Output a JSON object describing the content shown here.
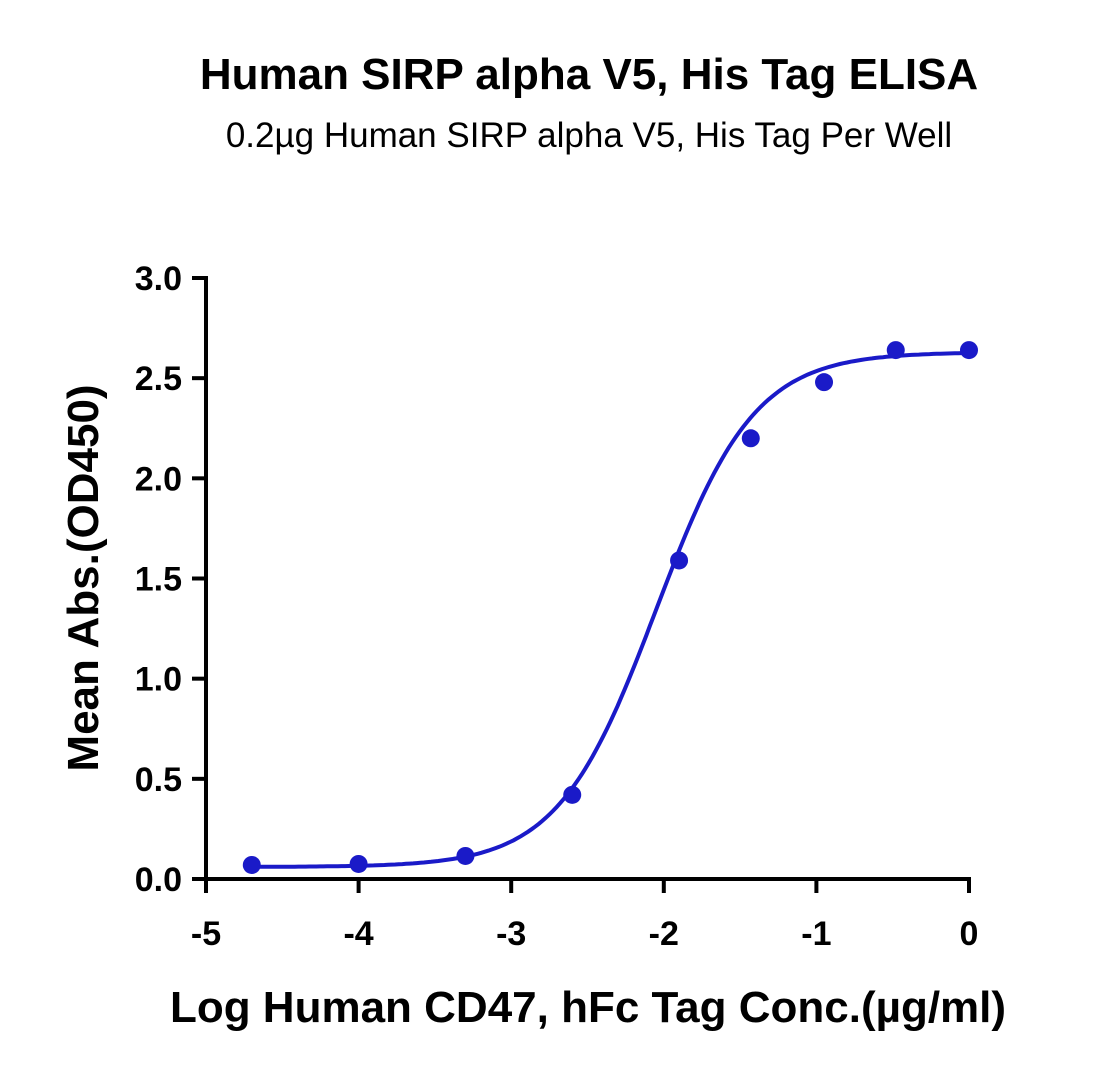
{
  "chart_data": {
    "type": "scatter",
    "title": "Human SIRP alpha V5, His Tag ELISA",
    "subtitle": "0.2µg Human SIRP alpha V5, His Tag Per Well",
    "xlabel": "Log Human CD47, hFc Tag Conc.(µg/ml)",
    "ylabel": "Mean Abs.(OD450)",
    "xlim": [
      -5,
      0
    ],
    "ylim": [
      0,
      3.0
    ],
    "xticks": [
      "-5",
      "-4",
      "-3",
      "-2",
      "-1",
      "0"
    ],
    "yticks": [
      "0.0",
      "0.5",
      "1.0",
      "1.5",
      "2.0",
      "2.5",
      "3.0"
    ],
    "grid": false,
    "series": [
      {
        "color": "#1a1ac8",
        "points": [
          {
            "x": -4.7,
            "y": 0.07
          },
          {
            "x": -4.0,
            "y": 0.075
          },
          {
            "x": -3.3,
            "y": 0.115
          },
          {
            "x": -2.6,
            "y": 0.42
          },
          {
            "x": -1.9,
            "y": 1.59
          },
          {
            "x": -1.43,
            "y": 2.2
          },
          {
            "x": -0.95,
            "y": 2.48
          },
          {
            "x": -0.48,
            "y": 2.64
          },
          {
            "x": 0.0,
            "y": 2.64
          }
        ],
        "fit": {
          "model": "4PL",
          "bottom": 0.06,
          "top": 2.63,
          "logEC50": -2.05,
          "hill": 1.35
        }
      }
    ]
  }
}
